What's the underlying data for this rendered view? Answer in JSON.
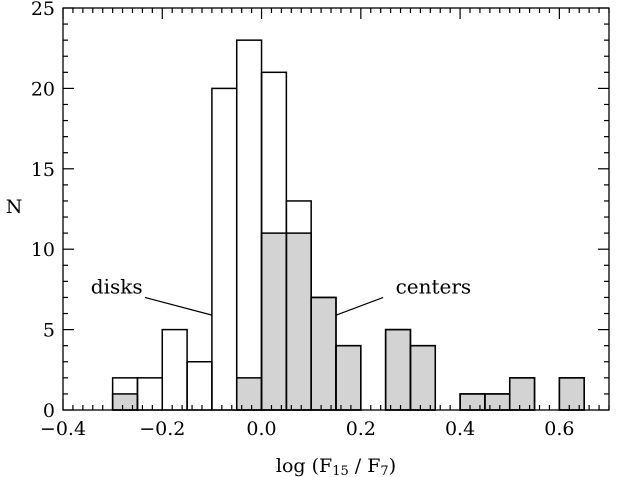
{
  "chart_data": {
    "type": "bar",
    "subtype": "histogram",
    "bin_width": 0.05,
    "xlabel_parts": {
      "prefix": "log (F",
      "sub1": "15",
      "mid": " / F",
      "sub2": "7",
      "suffix": ")"
    },
    "ylabel": "N",
    "xlim": [
      -0.4,
      0.7
    ],
    "ylim": [
      0,
      25
    ],
    "x_ticks": [
      -0.4,
      -0.2,
      0.0,
      0.2,
      0.4,
      0.6
    ],
    "x_tick_labels": [
      "−0.4",
      "−0.2",
      "0.0",
      "0.2",
      "0.4",
      "0.6"
    ],
    "y_ticks": [
      0,
      5,
      10,
      15,
      20,
      25
    ],
    "y_tick_labels": [
      "0",
      "5",
      "10",
      "15",
      "20",
      "25"
    ],
    "x_minor_step": 0.02,
    "y_minor_step": 1,
    "grid": false,
    "series": [
      {
        "name": "disks",
        "fill": "none",
        "bins": [
          {
            "x": -0.3,
            "y": 2
          },
          {
            "x": -0.25,
            "y": 2
          },
          {
            "x": -0.2,
            "y": 5
          },
          {
            "x": -0.15,
            "y": 3
          },
          {
            "x": -0.1,
            "y": 20
          },
          {
            "x": -0.05,
            "y": 23
          },
          {
            "x": 0.0,
            "y": 21
          },
          {
            "x": 0.05,
            "y": 13
          },
          {
            "x": 0.1,
            "y": 7
          },
          {
            "x": 0.15,
            "y": 4
          },
          {
            "x": 0.2,
            "y": 0
          },
          {
            "x": 0.25,
            "y": 5
          },
          {
            "x": 0.3,
            "y": 4
          },
          {
            "x": 0.35,
            "y": 0
          },
          {
            "x": 0.4,
            "y": 1
          },
          {
            "x": 0.45,
            "y": 1
          },
          {
            "x": 0.5,
            "y": 2
          },
          {
            "x": 0.55,
            "y": 0
          },
          {
            "x": 0.6,
            "y": 2
          }
        ]
      },
      {
        "name": "centers",
        "fill": "#d3d3d3",
        "bins": [
          {
            "x": -0.3,
            "y": 1
          },
          {
            "x": -0.05,
            "y": 2
          },
          {
            "x": 0.0,
            "y": 11
          },
          {
            "x": 0.05,
            "y": 11
          },
          {
            "x": 0.1,
            "y": 7
          },
          {
            "x": 0.15,
            "y": 4
          },
          {
            "x": 0.25,
            "y": 5
          },
          {
            "x": 0.3,
            "y": 4
          },
          {
            "x": 0.4,
            "y": 1
          },
          {
            "x": 0.45,
            "y": 1
          },
          {
            "x": 0.5,
            "y": 2
          },
          {
            "x": 0.6,
            "y": 2
          }
        ]
      }
    ],
    "annotations": [
      {
        "text": "disks",
        "text_at": [
          -0.344,
          7.0
        ],
        "anchor": "start",
        "line_from": [
          -0.235,
          7.0
        ],
        "line_to": [
          -0.1,
          5.9
        ]
      },
      {
        "text": "centers",
        "text_at": [
          0.27,
          7.0
        ],
        "anchor": "start",
        "line_from": [
          0.245,
          7.0
        ],
        "line_to": [
          0.15,
          5.9
        ]
      }
    ],
    "colors": {
      "axis": "#000000",
      "bar_stroke": "#000000",
      "center_fill": "#d3d3d3"
    }
  }
}
